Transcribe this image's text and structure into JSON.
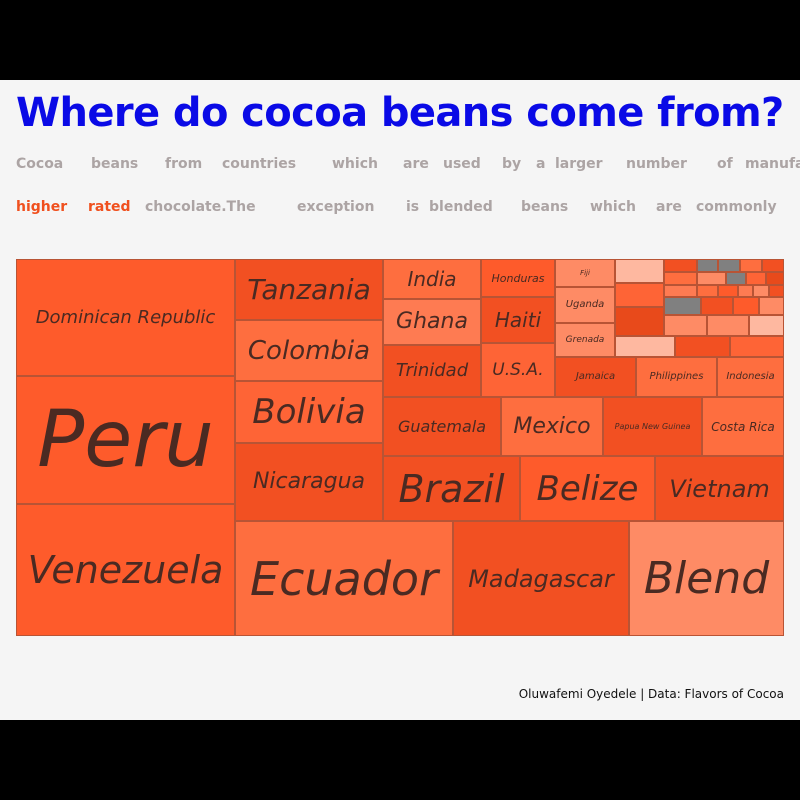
{
  "title": "Where do cocoa beans come from?",
  "subtitle_line1": [
    "Cocoa",
    "beans",
    "from",
    "countries",
    "which",
    "are",
    "used",
    "by",
    "a",
    "larger",
    "number",
    "of",
    "manufac"
  ],
  "subtitle_line2": [
    "higher",
    "rated",
    "chocolate.The",
    "exception",
    "is",
    "blended",
    "beans",
    "which",
    "are",
    "commonly"
  ],
  "subtitle_highlight_words": [
    "higher",
    "rated"
  ],
  "caption": "Oluwafemi Oyedele | Data: Flavors of Cocoa",
  "colors": {
    "title": "#0a0ae6",
    "subtitle": "#aca4a4",
    "highlight": "#f0501e",
    "background": "#f5f5f5",
    "label": "#4a2a22"
  },
  "chart_data": {
    "type": "treemap",
    "description_unit": "relative area",
    "nodes": [
      {
        "name": "Dominican Republic",
        "label": "Dominican Republic",
        "value": 230,
        "color": "#fe5b2b"
      },
      {
        "name": "Peru",
        "label": "Peru",
        "value": 245,
        "color": "#fe5b2b"
      },
      {
        "name": "Venezuela",
        "label": "Venezuela",
        "value": 250,
        "color": "#fe5b2b"
      },
      {
        "name": "Tanzania",
        "label": "Tanzania",
        "value": 80,
        "color": "#f25022"
      },
      {
        "name": "Colombia",
        "label": "Colombia",
        "value": 80,
        "color": "#fe6e3f"
      },
      {
        "name": "Bolivia",
        "label": "Bolivia",
        "value": 80,
        "color": "#fe6436"
      },
      {
        "name": "Nicaragua",
        "label": "Nicaragua",
        "value": 100,
        "color": "#f25022"
      },
      {
        "name": "Ecuador",
        "label": "Ecuador",
        "value": 200,
        "color": "#fe6e3f"
      },
      {
        "name": "Madagascar",
        "label": "Madagascar",
        "value": 160,
        "color": "#f25022"
      },
      {
        "name": "Blend",
        "label": "Blend",
        "value": 140,
        "color": "#fe8b65"
      },
      {
        "name": "India",
        "label": "India",
        "value": 23,
        "color": "#fe6e3f"
      },
      {
        "name": "Ghana",
        "label": "Ghana",
        "value": 35,
        "color": "#fe7b52"
      },
      {
        "name": "Trinidad",
        "label": "Trinidad",
        "value": 35,
        "color": "#f25022"
      },
      {
        "name": "Honduras",
        "label": "Honduras",
        "value": 18,
        "color": "#fe5b2b"
      },
      {
        "name": "Haiti",
        "label": "Haiti",
        "value": 22,
        "color": "#f25022"
      },
      {
        "name": "U.S.A.",
        "label": "U.S.A.",
        "value": 25,
        "color": "#fe6436"
      },
      {
        "name": "Guatemala",
        "label": "Guatemala",
        "value": 47,
        "color": "#f25022"
      },
      {
        "name": "Mexico",
        "label": "Mexico",
        "value": 40,
        "color": "#fe6e3f"
      },
      {
        "name": "Papua New Guinea",
        "label": "Papua New Guinea",
        "value": 38,
        "color": "#f25022"
      },
      {
        "name": "Costa Rica",
        "label": "Costa Rica",
        "value": 31,
        "color": "#fe6e3f"
      },
      {
        "name": "Brazil",
        "label": "Brazil",
        "value": 49,
        "color": "#f25022"
      },
      {
        "name": "Belize",
        "label": "Belize",
        "value": 44,
        "color": "#fe5b2b"
      },
      {
        "name": "Vietnam",
        "label": "Vietnam",
        "value": 51,
        "color": "#f25022"
      },
      {
        "name": "Fiji",
        "label": "Fiji",
        "value": 8,
        "color": "#fe8b65"
      },
      {
        "name": "Uganda",
        "label": "Uganda",
        "value": 8,
        "color": "#fe8b65"
      },
      {
        "name": "Grenada",
        "label": "Grenada",
        "value": 7,
        "color": "#fe8b65"
      },
      {
        "name": "Jamaica",
        "label": "Jamaica",
        "value": 10,
        "color": "#f25022"
      },
      {
        "name": "Philippines",
        "label": "Philippines",
        "value": 12,
        "color": "#fe6e3f"
      },
      {
        "name": "Indonesia",
        "label": "Indonesia",
        "value": 8,
        "color": "#fe6e3f"
      },
      {
        "name": "other-1",
        "label": "",
        "value": 3,
        "color": "#feb8a0"
      },
      {
        "name": "other-2",
        "label": "",
        "value": 3,
        "color": "#fe6436"
      },
      {
        "name": "other-3",
        "label": "",
        "value": 2,
        "color": "#f25022"
      },
      {
        "name": "other-4",
        "label": "",
        "value": 2,
        "color": "#808080"
      },
      {
        "name": "other-5",
        "label": "",
        "value": 2,
        "color": "#fe6e3f"
      },
      {
        "name": "other-6",
        "label": "",
        "value": 3,
        "color": "#fe7b52"
      },
      {
        "name": "other-7",
        "label": "",
        "value": 4,
        "color": "#e84a1b"
      },
      {
        "name": "other-8",
        "label": "",
        "value": 3,
        "color": "#808080"
      },
      {
        "name": "other-9",
        "label": "",
        "value": 3,
        "color": "#fe8b65"
      },
      {
        "name": "other-10",
        "label": "",
        "value": 3,
        "color": "#feb8a0"
      },
      {
        "name": "other-11",
        "label": "",
        "value": 4,
        "color": "#f25022"
      },
      {
        "name": "other-12",
        "label": "",
        "value": 3,
        "color": "#fe6436"
      },
      {
        "name": "other-13",
        "label": "",
        "value": 3,
        "color": "#feb8a0"
      },
      {
        "name": "other-14",
        "label": "",
        "value": 4,
        "color": "#fe8b65"
      },
      {
        "name": "other-15",
        "label": "",
        "value": 3,
        "color": "#f25022"
      },
      {
        "name": "other-16",
        "label": "",
        "value": 3,
        "color": "#fe5b2b"
      },
      {
        "name": "other-17",
        "label": "",
        "value": 3,
        "color": "#fe8b65"
      },
      {
        "name": "other-18",
        "label": "",
        "value": 1,
        "color": "#808080"
      },
      {
        "name": "other-19",
        "label": "",
        "value": 1,
        "color": "#fe6e3f"
      },
      {
        "name": "other-20",
        "label": "",
        "value": 1,
        "color": "#f25022"
      },
      {
        "name": "other-21",
        "label": "",
        "value": 1,
        "color": "#fe8b65"
      },
      {
        "name": "other-22",
        "label": "",
        "value": 1,
        "color": "#808080"
      },
      {
        "name": "other-23",
        "label": "",
        "value": 1,
        "color": "#fe6436"
      },
      {
        "name": "other-24",
        "label": "",
        "value": 1,
        "color": "#e84a1b"
      },
      {
        "name": "other-25",
        "label": "",
        "value": 1,
        "color": "#fe6e3f"
      },
      {
        "name": "other-26",
        "label": "",
        "value": 1,
        "color": "#fe5b2b"
      },
      {
        "name": "other-27",
        "label": "",
        "value": 1,
        "color": "#fe7b52"
      },
      {
        "name": "other-28",
        "label": "",
        "value": 1,
        "color": "#fe8b65"
      },
      {
        "name": "other-29",
        "label": "",
        "value": 1,
        "color": "#f25022"
      }
    ]
  }
}
